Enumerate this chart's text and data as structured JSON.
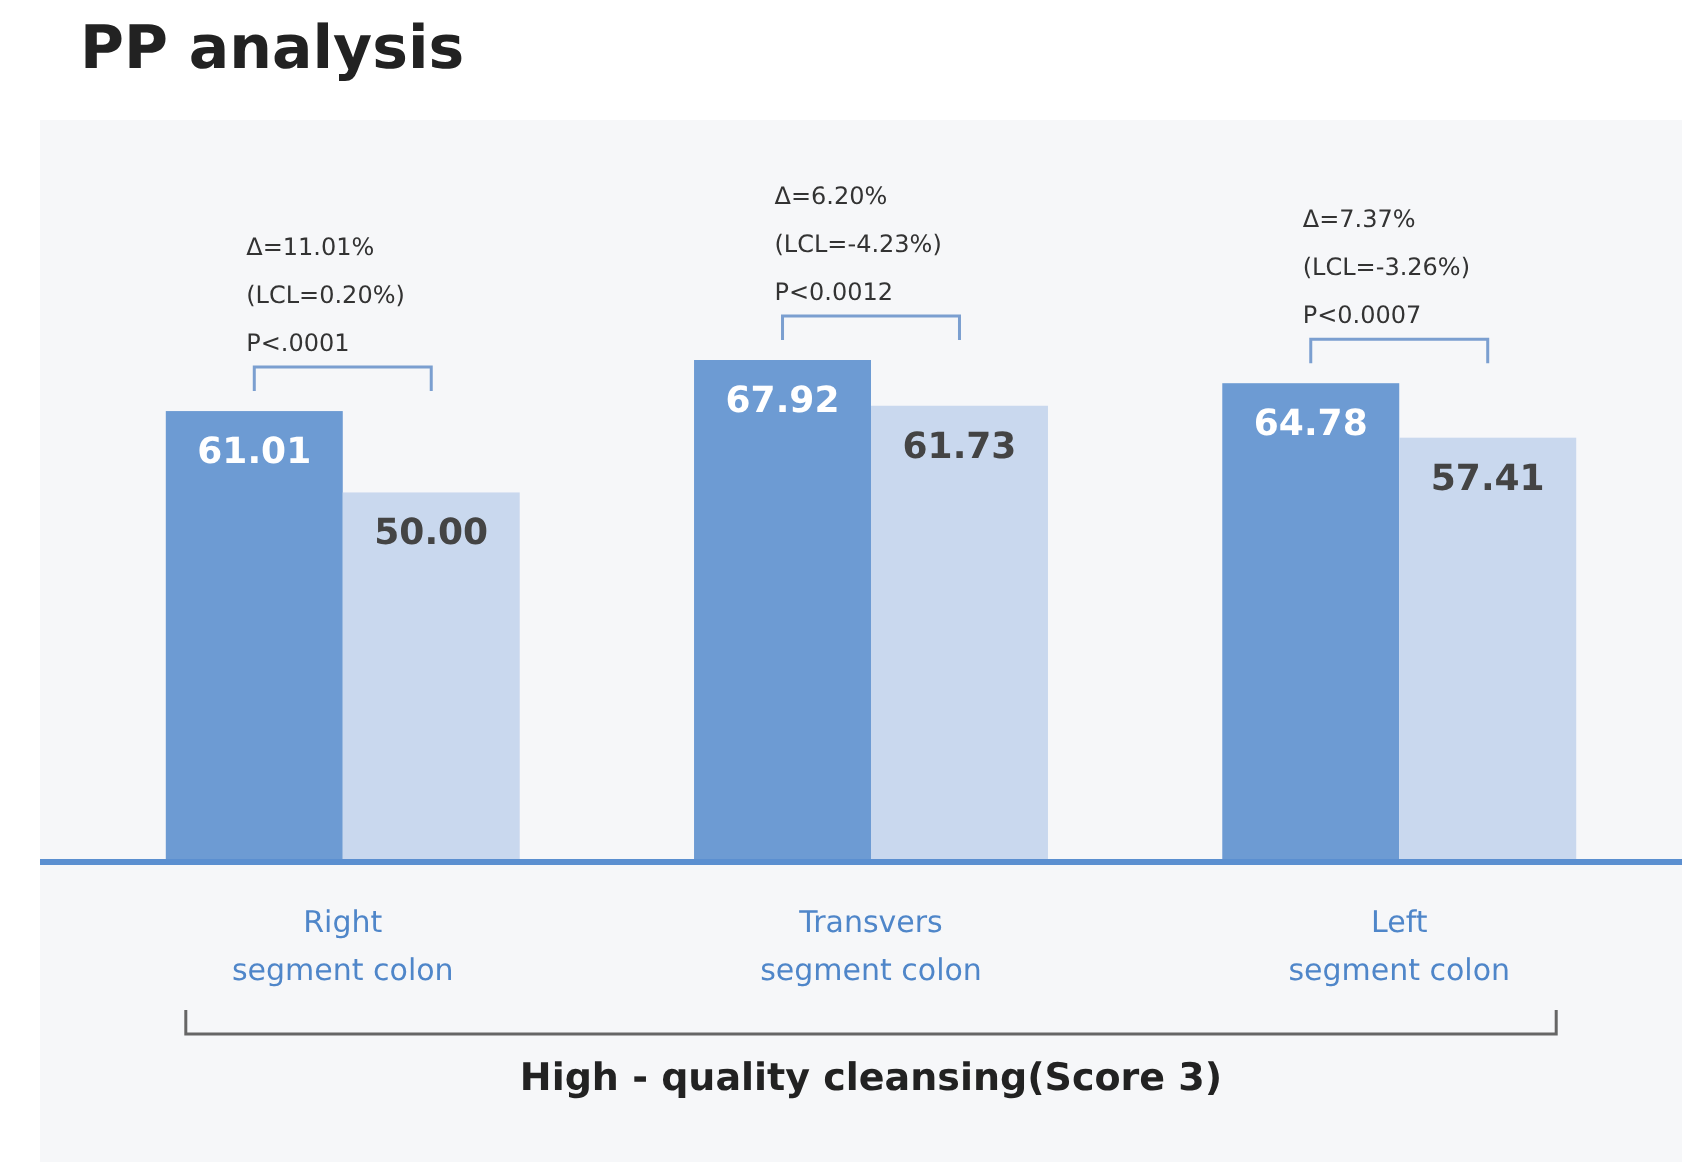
{
  "chart_data": {
    "type": "bar",
    "title": "PP analysis",
    "xlabel": "High - quality cleansing(Score 3)",
    "categories": [
      "Right\nsegment colon",
      "Transvers\nsegment colon",
      "Left\nsegment colon"
    ],
    "series": [
      {
        "color": "#6d9bd3",
        "values": [
          61.01,
          67.92,
          64.78
        ],
        "value_labels": [
          "61.01",
          "67.92",
          "64.78"
        ]
      },
      {
        "color": "#c9d8ee",
        "values": [
          50.0,
          61.73,
          57.41
        ],
        "value_labels": [
          "50.00",
          "61.73",
          "57.41"
        ]
      }
    ],
    "tick_labels": "x",
    "annotations": [
      {
        "text": "Δ=11.01%\n(LCL=0.20%)\nP<.0001",
        "x": "Right\nsegment colon",
        "y": 61.01
      },
      {
        "text": "Δ=6.20%\n(LCL=-4.23%)\nP<0.0012",
        "x": "Transvers\nsegment colon",
        "y": 67.92
      },
      {
        "text": "Δ=7.37%\n(LCL=-3.26%)\nP<0.0007",
        "x": "Left\nsegment colon",
        "y": 64.78
      }
    ]
  }
}
